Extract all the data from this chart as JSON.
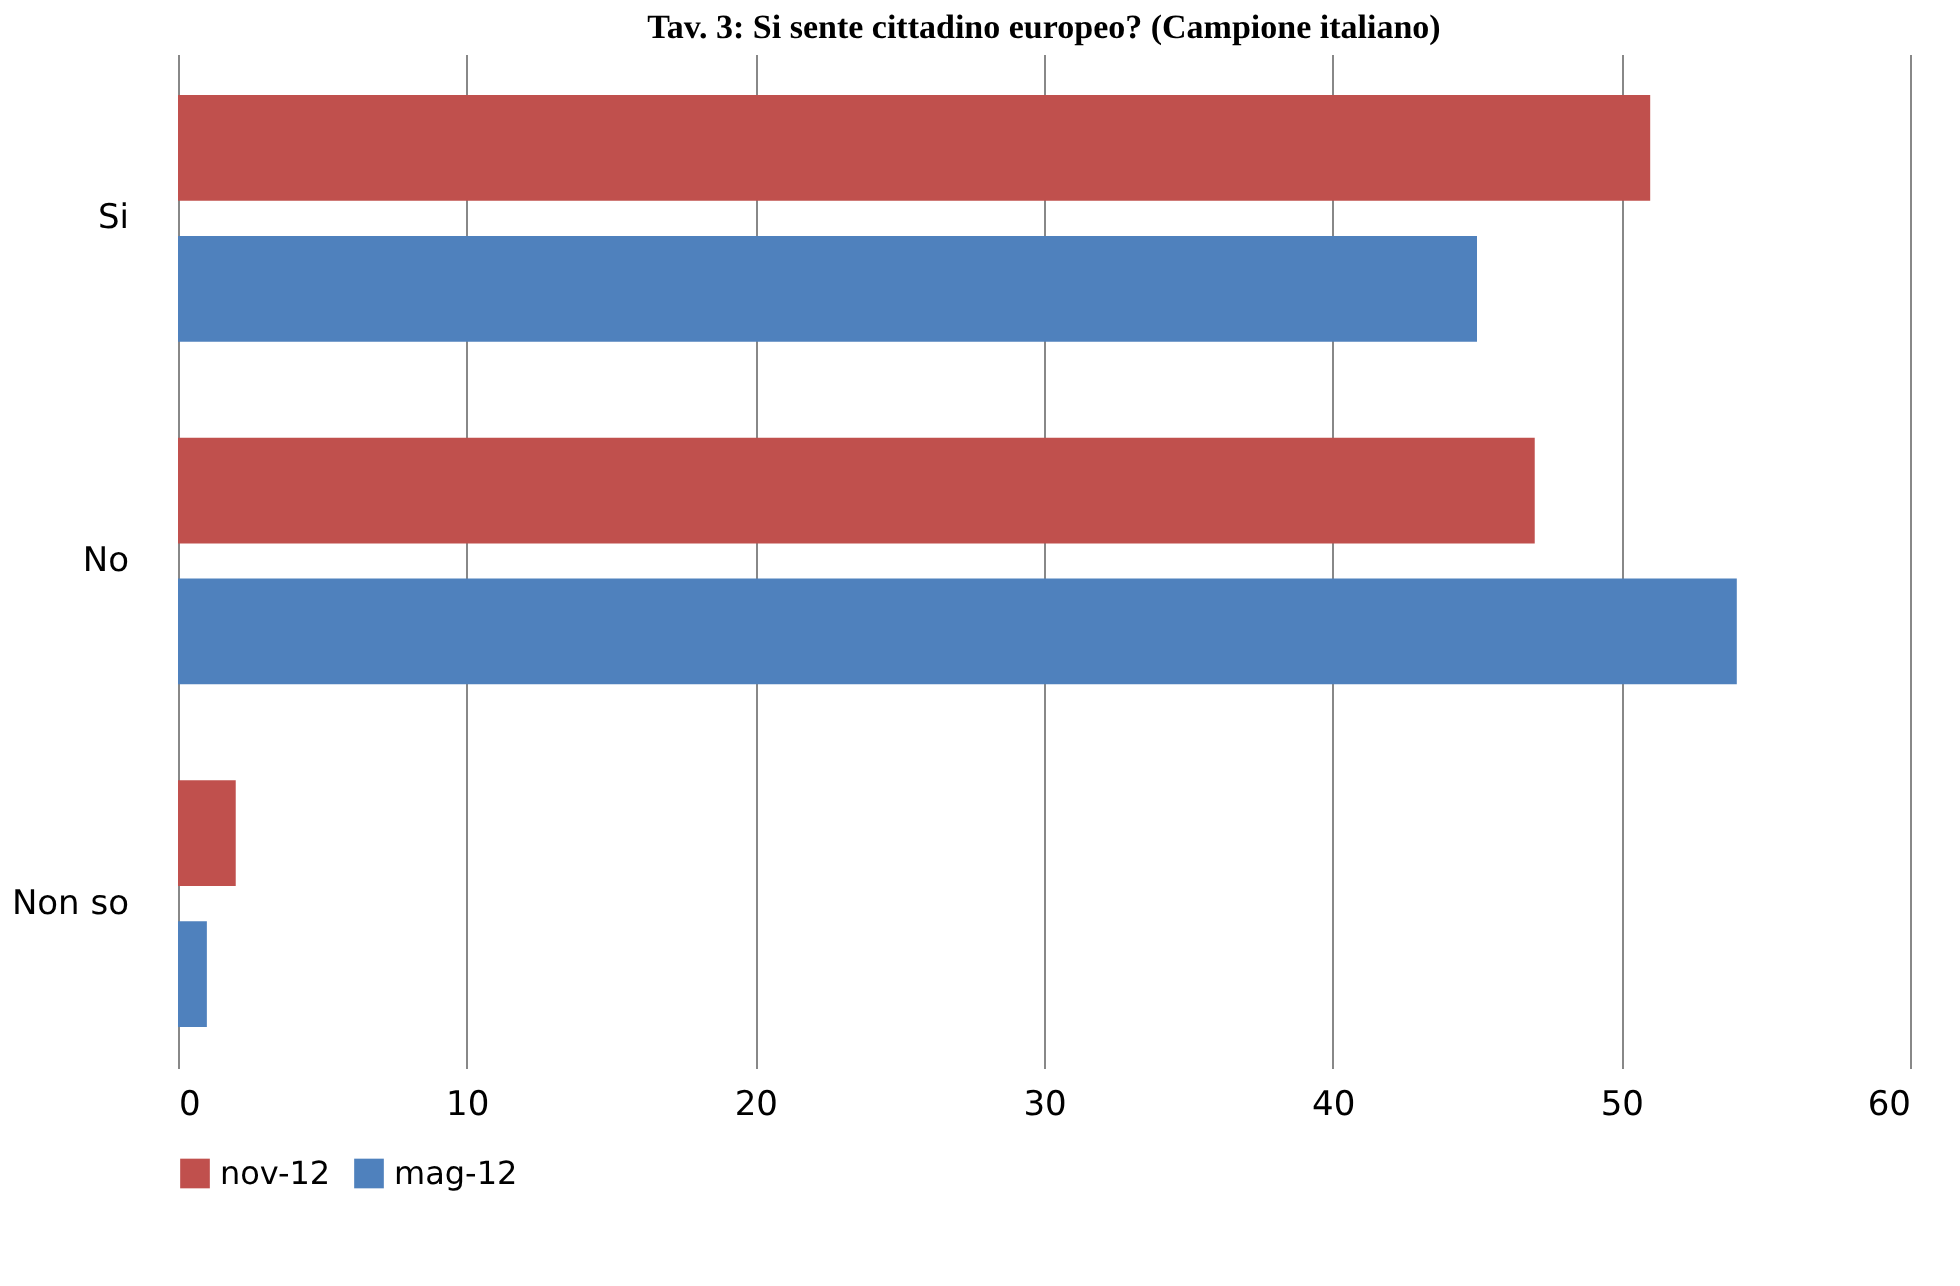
{
  "chart_data": {
    "type": "bar",
    "orientation": "horizontal",
    "title": "Tav. 3: Si sente cittadino europeo? (Campione italiano)",
    "categories": [
      "Si",
      "No",
      "Non so"
    ],
    "series": [
      {
        "name": "nov-12",
        "color": "#c0504d",
        "values": [
          51,
          47,
          2
        ]
      },
      {
        "name": "mag-12",
        "color": "#4f81bd",
        "values": [
          45,
          54,
          1
        ]
      }
    ],
    "xlim": [
      0,
      60
    ],
    "xticks": [
      0,
      10,
      20,
      30,
      40,
      50,
      60
    ],
    "grid": "x",
    "legend": "bottom"
  }
}
